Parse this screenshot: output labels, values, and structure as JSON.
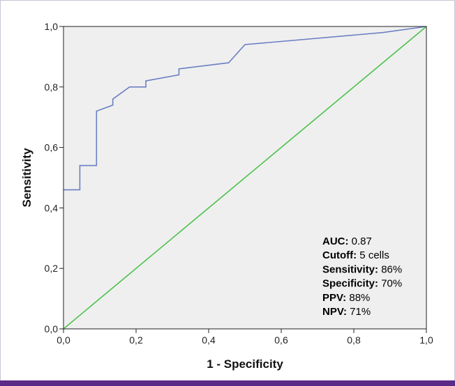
{
  "chart_data": {
    "type": "line",
    "xlabel": "1 - Specificity",
    "ylabel": "Sensitivity",
    "xlim": [
      0,
      1
    ],
    "ylim": [
      0,
      1
    ],
    "x_ticks": [
      "0,0",
      "0,2",
      "0,4",
      "0,6",
      "0,8",
      "1,0"
    ],
    "y_ticks": [
      "0,0",
      "0,2",
      "0,4",
      "0,6",
      "0,8",
      "1,0"
    ],
    "grid": false,
    "background": "#efefef",
    "series": [
      {
        "color": "#6b7fc4",
        "points": [
          [
            0,
            0.46
          ],
          [
            0.045,
            0.46
          ],
          [
            0.045,
            0.54
          ],
          [
            0.091,
            0.54
          ],
          [
            0.091,
            0.72
          ],
          [
            0.136,
            0.74
          ],
          [
            0.136,
            0.76
          ],
          [
            0.182,
            0.8
          ],
          [
            0.227,
            0.8
          ],
          [
            0.227,
            0.82
          ],
          [
            0.318,
            0.84
          ],
          [
            0.318,
            0.86
          ],
          [
            0.455,
            0.88
          ],
          [
            0.5,
            0.94
          ],
          [
            0.88,
            0.98
          ],
          [
            1,
            1
          ]
        ]
      },
      {
        "color": "#4cc24c",
        "points": [
          [
            0,
            0
          ],
          [
            1,
            1
          ]
        ]
      }
    ],
    "annotations": [
      {
        "key": "AUC:",
        "value": " 0.87"
      },
      {
        "key": "Cutoff:",
        "value": " 5 cells"
      },
      {
        "key": "Sensitivity:",
        "value": " 86%"
      },
      {
        "key": "Specificity:",
        "value": " 70%"
      },
      {
        "key": "PPV:",
        "value": " 88%"
      },
      {
        "key": "NPV:",
        "value": " 71%"
      }
    ]
  }
}
